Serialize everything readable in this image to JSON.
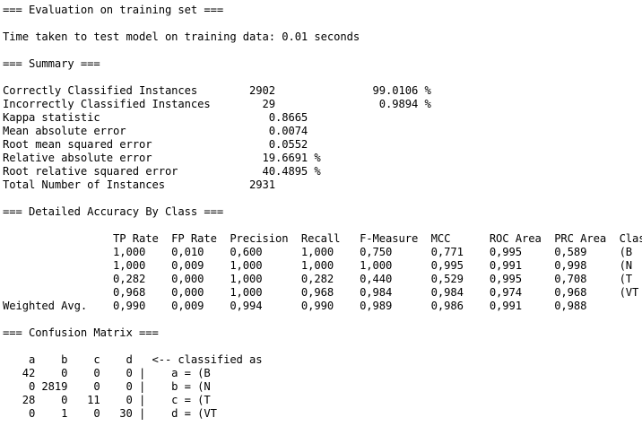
{
  "output": {
    "lines": [
      "=== Evaluation on training set ===",
      "",
      "Time taken to test model on training data: 0.01 seconds",
      "",
      "=== Summary ===",
      "",
      "Correctly Classified Instances        2902               99.0106 %",
      "Incorrectly Classified Instances        29                0.9894 %",
      "Kappa statistic                          0.8665",
      "Mean absolute error                      0.0074",
      "Root mean squared error                  0.0552",
      "Relative absolute error                 19.6691 %",
      "Root relative squared error             40.4895 %",
      "Total Number of Instances             2931",
      "",
      "=== Detailed Accuracy By Class ===",
      "",
      "                 TP Rate  FP Rate  Precision  Recall   F-Measure  MCC      ROC Area  PRC Area  Class",
      "                 1,000    0,010    0,600      1,000    0,750      0,771    0,995     0,589     (B",
      "                 1,000    0,009    1,000      1,000    1,000      0,995    0,991     0,998     (N",
      "                 0,282    0,000    1,000      0,282    0,440      0,529    0,995     0,708     (T",
      "                 0,968    0,000    1,000      0,968    0,984      0,984    0,974     0,968     (VT",
      "Weighted Avg.    0,990    0,009    0,994      0,990    0,989      0,986    0,991     0,988",
      "",
      "=== Confusion Matrix ===",
      "",
      "    a    b    c    d   <-- classified as",
      "   42    0    0    0 |    a = (B",
      "    0 2819    0    0 |    b = (N",
      "   28    0   11    0 |    c = (T",
      "    0    1    0   30 |    d = (VT"
    ]
  }
}
